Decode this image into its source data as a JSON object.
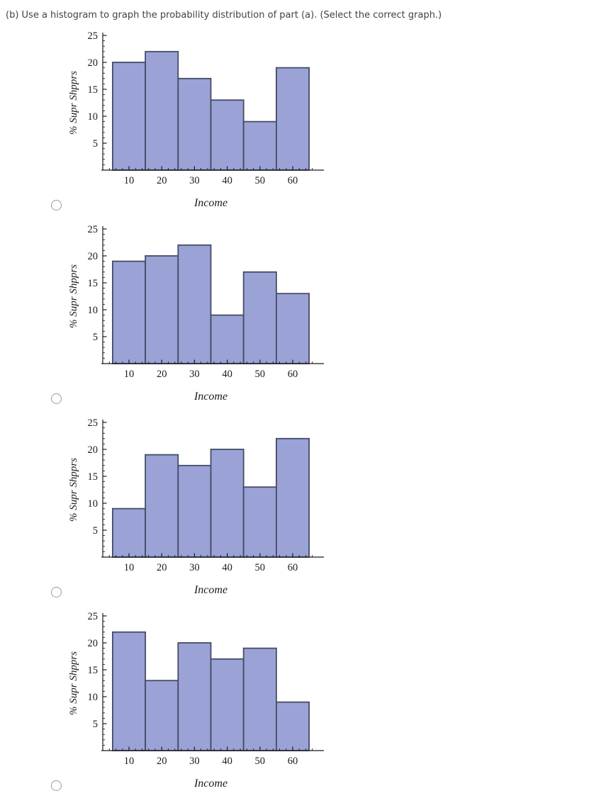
{
  "question": "(b) Use a histogram to graph the probability distribution of part (a). (Select the correct graph.)",
  "axes": {
    "xlabel": "Income",
    "ylabel": "% Supr Shpprs",
    "yticks": [
      5,
      10,
      15,
      20,
      25
    ],
    "xticks": [
      "10",
      "20",
      "30",
      "40",
      "50",
      "60"
    ],
    "ylim": [
      0,
      25
    ]
  },
  "colors": {
    "bar_fill": "#9aa2d6",
    "bar_edge": "#454c66",
    "axis": "#1b1b1b",
    "question_text": "#3f4247",
    "radio_border": "#9b9b9b"
  },
  "chart_data": [
    {
      "type": "bar",
      "categories": [
        10,
        20,
        30,
        40,
        50,
        60
      ],
      "values": [
        20,
        22,
        17,
        13,
        9,
        19
      ],
      "title": "",
      "xlabel": "Income",
      "ylabel": "% Supr Shpprs",
      "ylim": [
        0,
        25
      ],
      "yticks": [
        5,
        10,
        15,
        20,
        25
      ],
      "grid": false,
      "legend": false
    },
    {
      "type": "bar",
      "categories": [
        10,
        20,
        30,
        40,
        50,
        60
      ],
      "values": [
        19,
        20,
        22,
        9,
        17,
        13
      ],
      "title": "",
      "xlabel": "Income",
      "ylabel": "% Supr Shpprs",
      "ylim": [
        0,
        25
      ],
      "yticks": [
        5,
        10,
        15,
        20,
        25
      ],
      "grid": false,
      "legend": false
    },
    {
      "type": "bar",
      "categories": [
        10,
        20,
        30,
        40,
        50,
        60
      ],
      "values": [
        9,
        19,
        17,
        20,
        13,
        22
      ],
      "title": "",
      "xlabel": "Income",
      "ylabel": "% Supr Shpprs",
      "ylim": [
        0,
        25
      ],
      "yticks": [
        5,
        10,
        15,
        20,
        25
      ],
      "grid": false,
      "legend": false
    },
    {
      "type": "bar",
      "categories": [
        10,
        20,
        30,
        40,
        50,
        60
      ],
      "values": [
        22,
        13,
        20,
        17,
        19,
        9
      ],
      "title": "",
      "xlabel": "Income",
      "ylabel": "% Supr Shpprs",
      "ylim": [
        0,
        25
      ],
      "yticks": [
        5,
        10,
        15,
        20,
        25
      ],
      "grid": false,
      "legend": false
    }
  ],
  "options": [
    {
      "value": "option-1",
      "selected": false
    },
    {
      "value": "option-2",
      "selected": false
    },
    {
      "value": "option-3",
      "selected": false
    },
    {
      "value": "option-4",
      "selected": false
    }
  ]
}
